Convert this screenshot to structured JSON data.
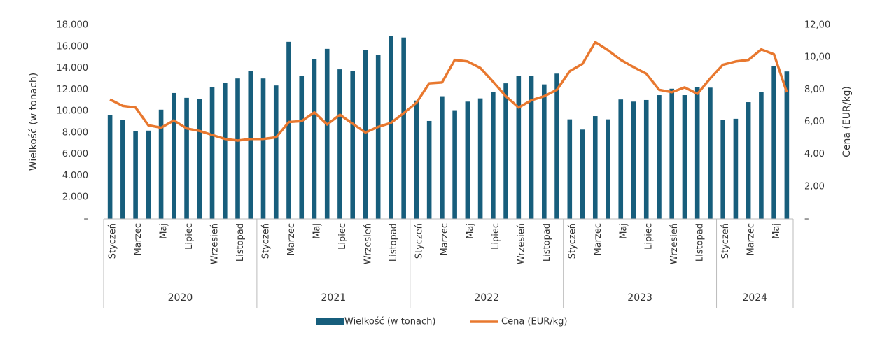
{
  "chart_data": {
    "type": "bar-line",
    "categories": [
      "Styczeń",
      null,
      "Marzec",
      null,
      "Maj",
      null,
      "Lipiec",
      null,
      "Wrzesień",
      null,
      "Listopad",
      null,
      "Styczeń",
      null,
      "Marzec",
      null,
      "Maj",
      null,
      "Lipiec",
      null,
      "Wrzesień",
      null,
      "Listopad",
      null,
      "Styczeń",
      null,
      "Marzec",
      null,
      "Maj",
      null,
      "Lipiec",
      null,
      "Wrzesień",
      null,
      "Listopad",
      null,
      "Styczeń",
      null,
      "Marzec",
      null,
      "Maj",
      null,
      "Lipiec",
      null,
      "Wrzesień",
      null,
      "Listopad",
      null,
      "Styczeń",
      null,
      "Marzec",
      null,
      "Maj",
      null
    ],
    "groups": [
      {
        "name": "2020",
        "count": 12
      },
      {
        "name": "2021",
        "count": 12
      },
      {
        "name": "2022",
        "count": 12
      },
      {
        "name": "2023",
        "count": 12
      },
      {
        "name": "2024",
        "count": 6
      }
    ],
    "series": [
      {
        "name": "Wielkość (w tonach)",
        "type": "bar",
        "color": "#175e7c",
        "values": [
          9650,
          9200,
          8150,
          8200,
          10150,
          11700,
          11250,
          11150,
          12250,
          12650,
          13050,
          13750,
          13050,
          12400,
          16450,
          13300,
          14850,
          15800,
          13900,
          13750,
          15700,
          15250,
          17000,
          16850,
          11000,
          9100,
          11400,
          10100,
          10900,
          11200,
          11800,
          12600,
          13300,
          13300,
          12500,
          13500,
          9250,
          8300,
          9550,
          9250,
          11100,
          10900,
          11050,
          11500,
          12100,
          11500,
          12250,
          12200,
          9200,
          9300,
          10850,
          11800,
          14200,
          13700
        ]
      },
      {
        "name": "Cena (EUR/kg)",
        "type": "line",
        "axis": "y2",
        "color": "#e8782f",
        "values": [
          7.4,
          7.0,
          6.9,
          5.8,
          5.65,
          6.1,
          5.6,
          5.45,
          5.2,
          4.95,
          4.85,
          4.95,
          4.95,
          5.05,
          6.0,
          6.05,
          6.6,
          5.85,
          6.45,
          5.9,
          5.35,
          5.7,
          5.95,
          6.55,
          7.2,
          8.4,
          8.45,
          9.85,
          9.75,
          9.35,
          8.5,
          7.6,
          6.9,
          7.35,
          7.6,
          8.0,
          9.15,
          9.6,
          10.95,
          10.45,
          9.85,
          9.4,
          9.0,
          8.0,
          7.85,
          8.15,
          7.75,
          8.7,
          9.55,
          9.75,
          9.85,
          10.5,
          10.2,
          7.85
        ]
      }
    ],
    "ylabel": "Wielkość (w tonach)",
    "y2label": "Cena (EUR/kg)",
    "ylim": [
      0,
      18000
    ],
    "yticks": [
      {
        "value": 0,
        "label": "–"
      },
      {
        "value": 2000,
        "label": "2.000"
      },
      {
        "value": 4000,
        "label": "4.000"
      },
      {
        "value": 6000,
        "label": "6.000"
      },
      {
        "value": 8000,
        "label": "8.000"
      },
      {
        "value": 10000,
        "label": "10.000"
      },
      {
        "value": 12000,
        "label": "12.000"
      },
      {
        "value": 14000,
        "label": "14.000"
      },
      {
        "value": 16000,
        "label": "16.000"
      },
      {
        "value": 18000,
        "label": "18.000"
      }
    ],
    "y2lim": [
      0,
      12
    ],
    "y2ticks": [
      {
        "value": 0,
        "label": "–"
      },
      {
        "value": 2,
        "label": "2,00"
      },
      {
        "value": 4,
        "label": "4,00"
      },
      {
        "value": 6,
        "label": "6,00"
      },
      {
        "value": 8,
        "label": "8,00"
      },
      {
        "value": 10,
        "label": "10,00"
      },
      {
        "value": 12,
        "label": "12,00"
      }
    ],
    "grid": false,
    "legend": "bottom"
  }
}
